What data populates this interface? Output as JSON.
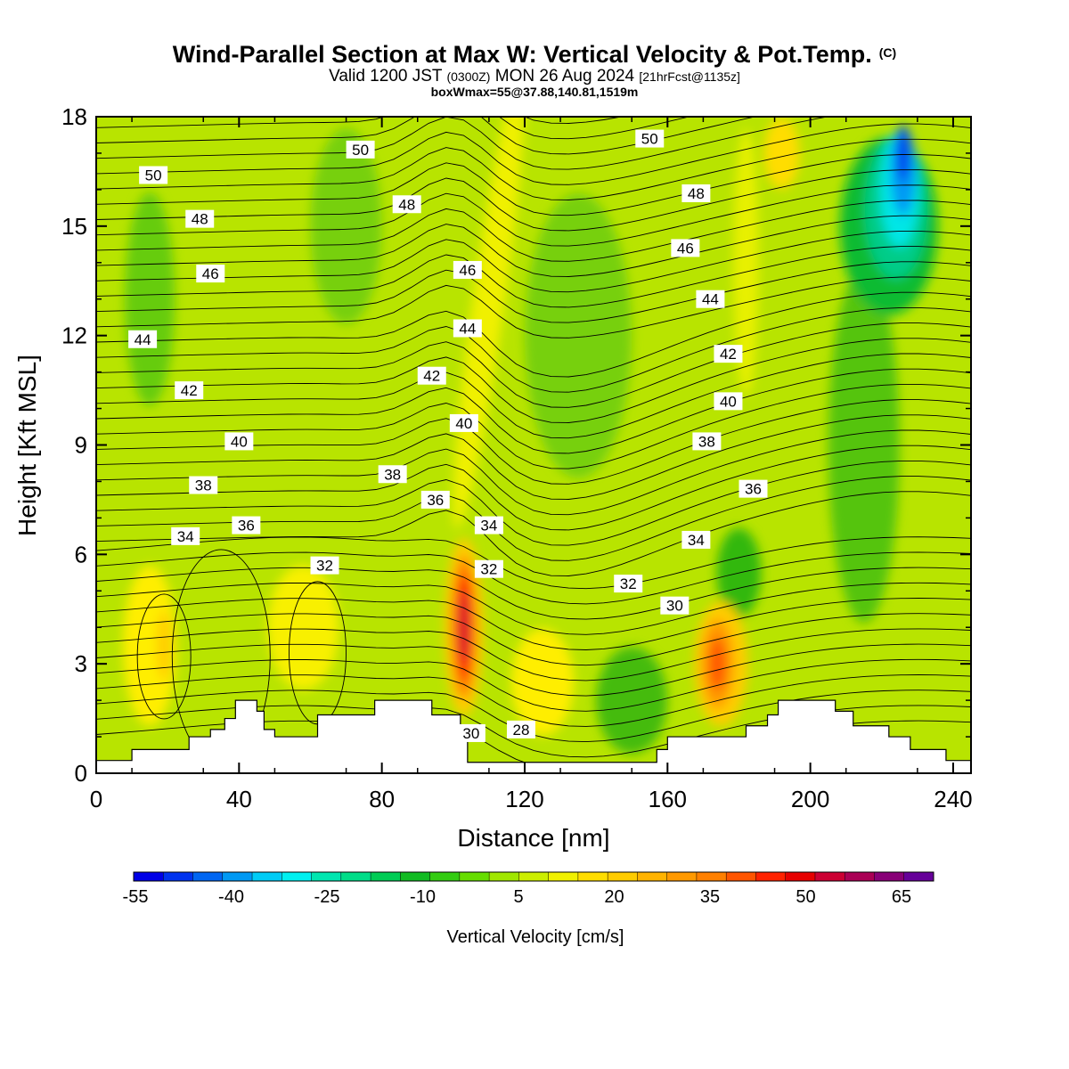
{
  "header": {
    "title": "Wind-Parallel Section at Max W: Vertical Velocity & Pot.Temp.",
    "copyright": "(C)",
    "valid_prefix": "Valid 1200 JST",
    "valid_z": "(0300Z)",
    "valid_date": "MON 26 Aug 2024",
    "forecast": "[21hrFcst@1135z]",
    "box": "boxWmax=55@37.88,140.81,1519m"
  },
  "colorbar": {
    "label": "Vertical Velocity [cm/s]",
    "tick_labels": [
      "-55",
      "-40",
      "-25",
      "-10",
      "5",
      "20",
      "35",
      "50",
      "65"
    ],
    "colors": [
      "#0000e6",
      "#0033ee",
      "#0066f2",
      "#0099f4",
      "#00ccf6",
      "#00f0f0",
      "#00e6b0",
      "#00dd88",
      "#00cc55",
      "#11bb22",
      "#33cc11",
      "#66dd00",
      "#a0e600",
      "#ccee00",
      "#f0f000",
      "#ffdd00",
      "#ffcc00",
      "#ffb300",
      "#ff9900",
      "#ff8000",
      "#ff5500",
      "#ff2200",
      "#e60000",
      "#cc0033",
      "#aa0055",
      "#880077",
      "#660099"
    ]
  },
  "chart_data": {
    "type": "heatmap",
    "title": "Wind-Parallel Section at Max W: Vertical Velocity & Pot.Temp.",
    "xlabel": "Distance [nm]",
    "ylabel": "Height [Kft MSL]",
    "xlim": [
      0,
      245
    ],
    "ylim": [
      0,
      18
    ],
    "x_ticks": [
      0,
      40,
      80,
      120,
      160,
      200,
      240
    ],
    "y_ticks": [
      0,
      3,
      6,
      9,
      12,
      15,
      18
    ],
    "colorbar_label": "Vertical Velocity [cm/s]",
    "vertical_velocity_max": {
      "value_cm_s": 55,
      "x_nm": 103,
      "height_kft": 4
    },
    "updraft_cores": [
      {
        "x_nm": 103,
        "height_kft": 4,
        "w_cm_s": 55
      },
      {
        "x_nm": 175,
        "height_kft": 3,
        "w_cm_s": 30
      },
      {
        "x_nm": 19,
        "height_kft": 3.5,
        "w_cm_s": 20
      },
      {
        "x_nm": 60,
        "height_kft": 4,
        "w_cm_s": 10
      }
    ],
    "downdraft_cores": [
      {
        "x_nm": 226,
        "height_kft": 16.5,
        "w_cm_s": -45
      },
      {
        "x_nm": 150,
        "height_kft": 2,
        "w_cm_s": -15
      }
    ],
    "theta_contour_labels": [
      {
        "text": "50",
        "x": 16,
        "y": 16.4
      },
      {
        "text": "50",
        "x": 74,
        "y": 17.1
      },
      {
        "text": "50",
        "x": 155,
        "y": 17.4
      },
      {
        "text": "48",
        "x": 29,
        "y": 15.2
      },
      {
        "text": "48",
        "x": 87,
        "y": 15.6
      },
      {
        "text": "48",
        "x": 168,
        "y": 15.9
      },
      {
        "text": "46",
        "x": 32,
        "y": 13.7
      },
      {
        "text": "46",
        "x": 104,
        "y": 13.8
      },
      {
        "text": "46",
        "x": 165,
        "y": 14.4
      },
      {
        "text": "44",
        "x": 13,
        "y": 11.9
      },
      {
        "text": "44",
        "x": 104,
        "y": 12.2
      },
      {
        "text": "44",
        "x": 172,
        "y": 13.0
      },
      {
        "text": "42",
        "x": 26,
        "y": 10.5
      },
      {
        "text": "42",
        "x": 94,
        "y": 10.9
      },
      {
        "text": "42",
        "x": 177,
        "y": 11.5
      },
      {
        "text": "40",
        "x": 40,
        "y": 9.1
      },
      {
        "text": "40",
        "x": 103,
        "y": 9.6
      },
      {
        "text": "40",
        "x": 177,
        "y": 10.2
      },
      {
        "text": "38",
        "x": 30,
        "y": 7.9
      },
      {
        "text": "38",
        "x": 83,
        "y": 8.2
      },
      {
        "text": "38",
        "x": 171,
        "y": 9.1
      },
      {
        "text": "36",
        "x": 42,
        "y": 6.8
      },
      {
        "text": "36",
        "x": 95,
        "y": 7.5
      },
      {
        "text": "36",
        "x": 184,
        "y": 7.8
      },
      {
        "text": "34",
        "x": 25,
        "y": 6.5
      },
      {
        "text": "34",
        "x": 110,
        "y": 6.8
      },
      {
        "text": "34",
        "x": 168,
        "y": 6.4
      },
      {
        "text": "32",
        "x": 64,
        "y": 5.7
      },
      {
        "text": "32",
        "x": 110,
        "y": 5.6
      },
      {
        "text": "32",
        "x": 149,
        "y": 5.2
      },
      {
        "text": "30",
        "x": 105,
        "y": 1.1
      },
      {
        "text": "30",
        "x": 162,
        "y": 4.6
      },
      {
        "text": "28",
        "x": 119,
        "y": 1.2
      }
    ],
    "terrain_height_kft": [
      {
        "x": 0,
        "h": 0.35
      },
      {
        "x": 10,
        "h": 0.65
      },
      {
        "x": 26,
        "h": 1.0
      },
      {
        "x": 32,
        "h": 1.2
      },
      {
        "x": 36,
        "h": 1.5
      },
      {
        "x": 39,
        "h": 2.0
      },
      {
        "x": 45,
        "h": 1.7
      },
      {
        "x": 47,
        "h": 1.2
      },
      {
        "x": 50,
        "h": 1.0
      },
      {
        "x": 62,
        "h": 1.6
      },
      {
        "x": 78,
        "h": 2.0
      },
      {
        "x": 94,
        "h": 1.6
      },
      {
        "x": 100,
        "h": 1.6
      },
      {
        "x": 102,
        "h": 1.0
      },
      {
        "x": 104,
        "h": 0.3
      },
      {
        "x": 157,
        "h": 0.65
      },
      {
        "x": 160,
        "h": 1.0
      },
      {
        "x": 174,
        "h": 1.0
      },
      {
        "x": 182,
        "h": 1.3
      },
      {
        "x": 188,
        "h": 1.6
      },
      {
        "x": 191,
        "h": 2.0
      },
      {
        "x": 207,
        "h": 1.7
      },
      {
        "x": 212,
        "h": 1.3
      },
      {
        "x": 222,
        "h": 1.0
      },
      {
        "x": 228,
        "h": 0.65
      },
      {
        "x": 238,
        "h": 0.35
      },
      {
        "x": 245,
        "h": 0.35
      }
    ]
  }
}
